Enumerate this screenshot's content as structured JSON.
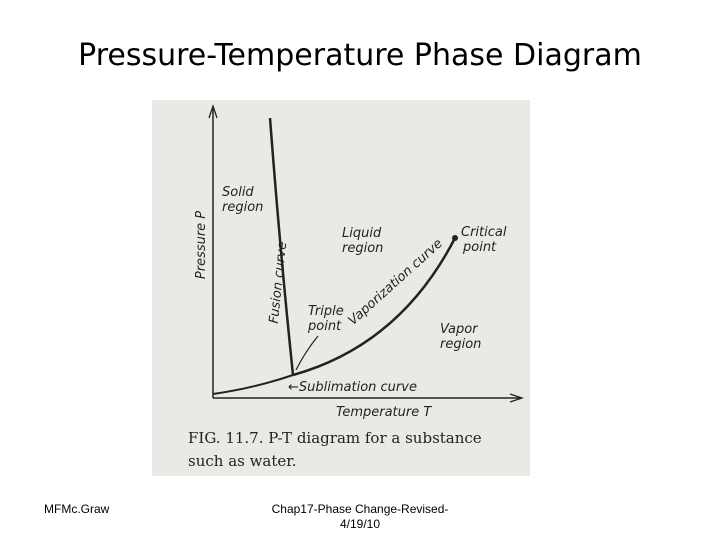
{
  "header": {
    "title": "Pressure-Temperature Phase Diagram"
  },
  "figure": {
    "y_axis_label": "Pressure P",
    "x_axis_label": "Temperature T",
    "regions": [
      {
        "lines": [
          "Solid",
          "region"
        ]
      },
      {
        "lines": [
          "Liquid",
          "region"
        ]
      },
      {
        "lines": [
          "Vapor",
          "region"
        ]
      }
    ],
    "curves": {
      "fusion": "Fusion curve",
      "vaporization": "Vaporization curve",
      "sublimation": "←Sublimation curve"
    },
    "points": {
      "triple": [
        "Triple",
        "point"
      ],
      "critical": [
        "Critical",
        "point"
      ]
    },
    "caption": [
      "FIG. 11.7. P-T diagram for a substance",
      "such as water."
    ]
  },
  "footer": {
    "left": "MFMc.Graw",
    "center": "Chap17-Phase Change-Revised-4/19/10"
  }
}
